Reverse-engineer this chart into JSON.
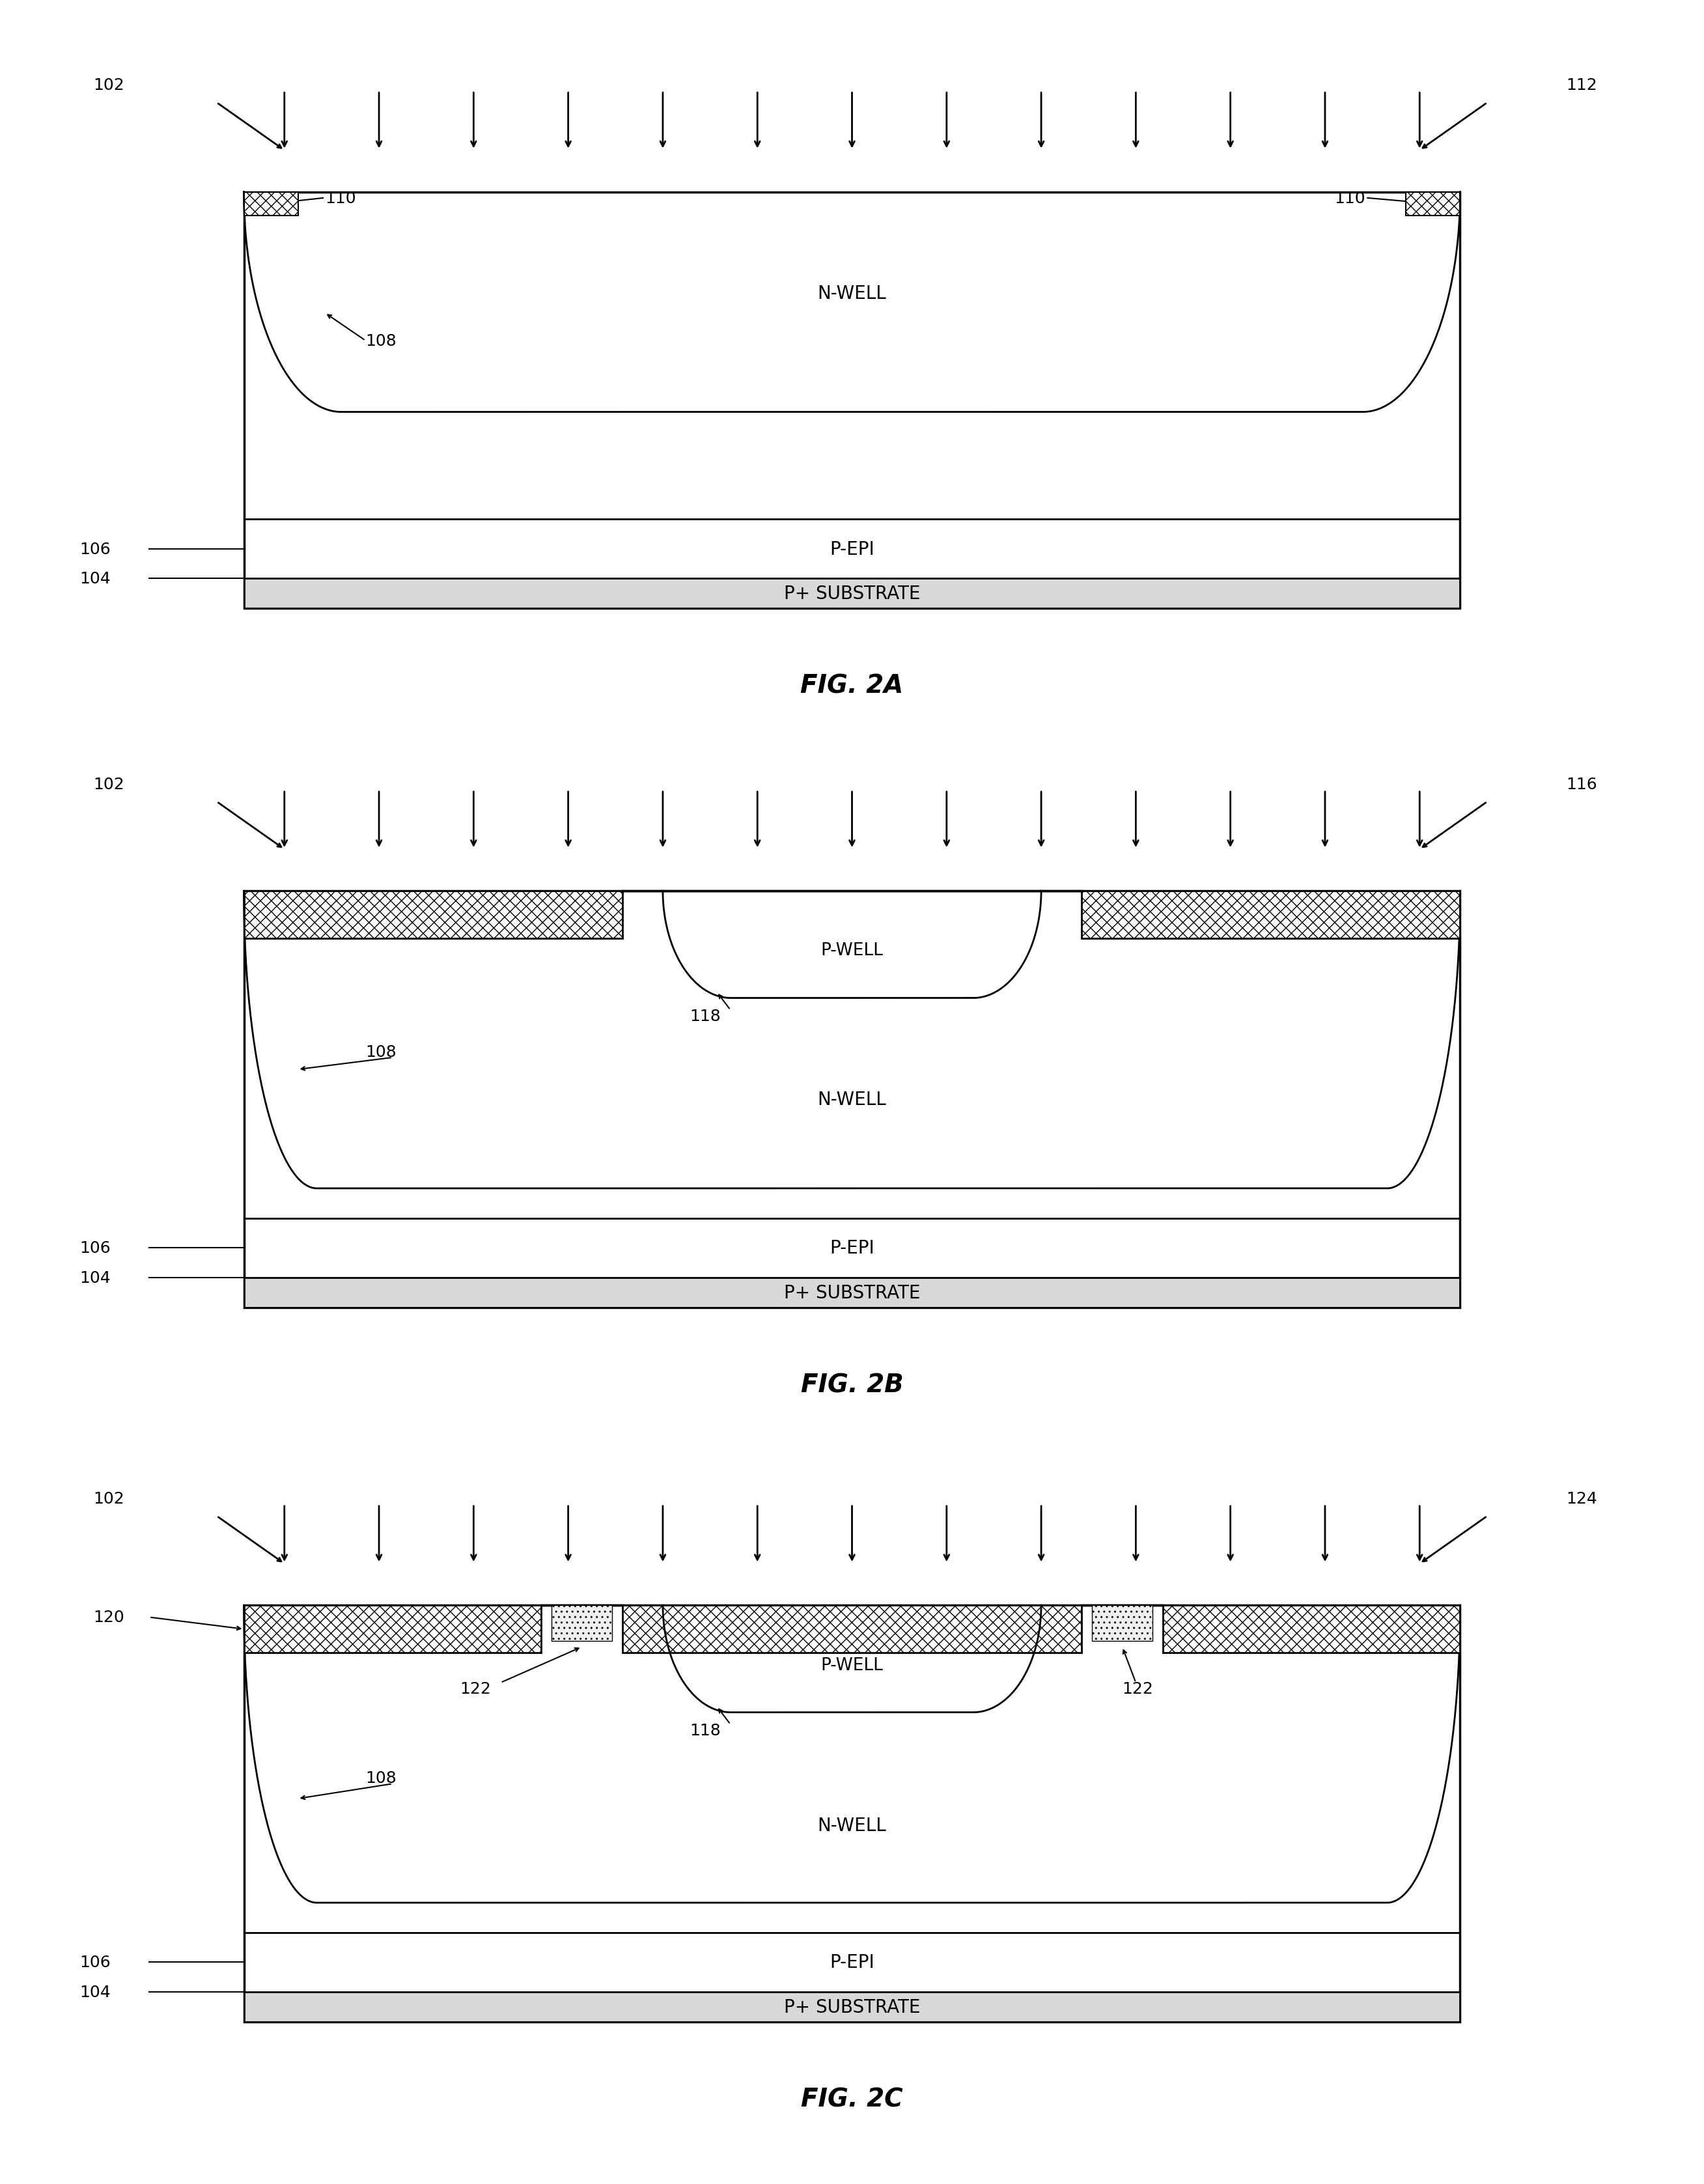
{
  "bg_color": "#ffffff",
  "line_color": "#000000",
  "fig_labels": [
    "FIG. 2A",
    "FIG. 2B",
    "FIG. 2C"
  ],
  "layer_labels": {
    "nwell": "N-WELL",
    "pepi": "P-EPI",
    "psub": "P+ SUBSTRATE",
    "pwell": "P-WELL"
  },
  "fig_label_fontsize": 28,
  "annotation_fontsize": 18,
  "layer_fontsize": 20
}
